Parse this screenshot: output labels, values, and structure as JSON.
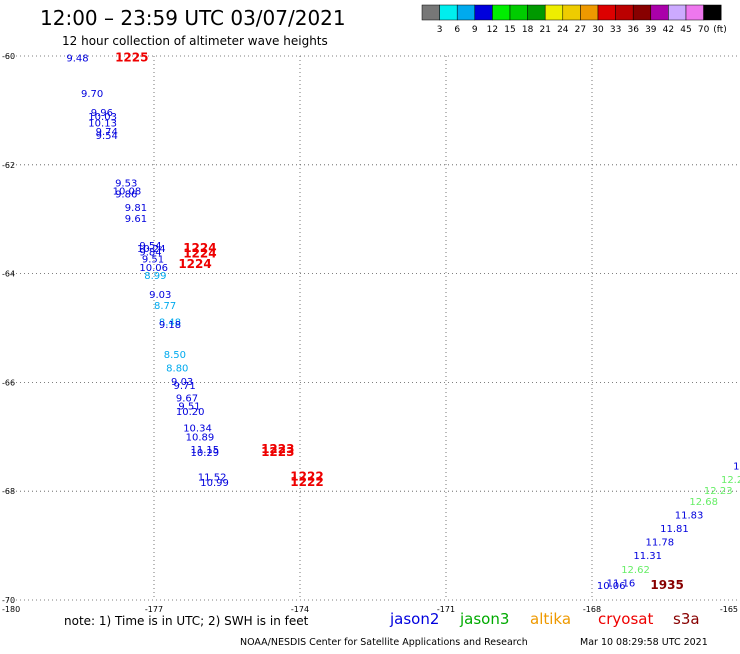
{
  "header": {
    "title": "12:00 – 23:59 UTC 03/07/2021",
    "subtitle": "12 hour collection of altimeter wave heights"
  },
  "colorbar": {
    "unit": "(ft)",
    "labels": [
      "3",
      "6",
      "9",
      "12",
      "15",
      "18",
      "21",
      "24",
      "27",
      "30",
      "33",
      "36",
      "39",
      "42",
      "45",
      "70"
    ],
    "colors": [
      "#777777",
      "#00eeee",
      "#00aaee",
      "#0000dd",
      "#00ee00",
      "#00cc00",
      "#009900",
      "#eeee00",
      "#eecc00",
      "#ee9900",
      "#dd0000",
      "#bb0000",
      "#880000",
      "#aa00aa",
      "#ccaaff",
      "#ee77ee",
      "#000000"
    ]
  },
  "map": {
    "lon_range": [
      -180,
      -165
    ],
    "lat_range": [
      -70,
      -60
    ],
    "lat_ticks": [
      "-60",
      "-62",
      "-64",
      "-66",
      "-68",
      "-70"
    ],
    "lon_ticks": [
      "-180",
      "-177",
      "-174",
      "-171",
      "-168",
      "-165"
    ],
    "grid": "dotted"
  },
  "time_labels": [
    {
      "text": "1225",
      "lon": -177.8,
      "lat": -60.1,
      "color": "#ee0000"
    },
    {
      "text": "1224",
      "lon": -176.4,
      "lat": -63.6,
      "color": "#ee0000"
    },
    {
      "text": "1224",
      "lon": -176.4,
      "lat": -63.7,
      "color": "#ee0000"
    },
    {
      "text": "1224",
      "lon": -176.5,
      "lat": -63.9,
      "color": "#ee0000"
    },
    {
      "text": "1223",
      "lon": -174.8,
      "lat": -67.3,
      "color": "#ee0000"
    },
    {
      "text": "1223",
      "lon": -174.8,
      "lat": -67.35,
      "color": "#ee0000"
    },
    {
      "text": "1222",
      "lon": -174.2,
      "lat": -67.8,
      "color": "#ee0000"
    },
    {
      "text": "1222",
      "lon": -174.2,
      "lat": -67.9,
      "color": "#ee0000"
    },
    {
      "text": "1935",
      "lon": -166.8,
      "lat": -69.8,
      "color": "#880000"
    }
  ],
  "wave_heights": [
    {
      "text": "9.48",
      "lon": -178.8,
      "lat": -60.1,
      "color": "#0000dd"
    },
    {
      "text": "9.70",
      "lon": -178.5,
      "lat": -60.75,
      "color": "#0000dd"
    },
    {
      "text": "9.96",
      "lon": -178.3,
      "lat": -61.1,
      "color": "#0000dd"
    },
    {
      "text": "10.03",
      "lon": -178.35,
      "lat": -61.18,
      "color": "#0000dd"
    },
    {
      "text": "10.13",
      "lon": -178.35,
      "lat": -61.3,
      "color": "#0000dd"
    },
    {
      "text": "9.74",
      "lon": -178.2,
      "lat": -61.45,
      "color": "#0000dd"
    },
    {
      "text": "9.54",
      "lon": -178.2,
      "lat": -61.53,
      "color": "#0000dd"
    },
    {
      "text": "9.53",
      "lon": -177.8,
      "lat": -62.4,
      "color": "#0000dd"
    },
    {
      "text": "10.08",
      "lon": -177.85,
      "lat": -62.55,
      "color": "#0000dd"
    },
    {
      "text": "9.86",
      "lon": -177.8,
      "lat": -62.6,
      "color": "#0000dd"
    },
    {
      "text": "9.81",
      "lon": -177.6,
      "lat": -62.85,
      "color": "#0000dd"
    },
    {
      "text": "9.61",
      "lon": -177.6,
      "lat": -63.05,
      "color": "#0000dd"
    },
    {
      "text": "9.54",
      "lon": -177.3,
      "lat": -63.55,
      "color": "#0000dd"
    },
    {
      "text": "10.24",
      "lon": -177.35,
      "lat": -63.6,
      "color": "#0000dd"
    },
    {
      "text": "9.84",
      "lon": -177.3,
      "lat": -63.67,
      "color": "#0000dd"
    },
    {
      "text": "9.51",
      "lon": -177.25,
      "lat": -63.8,
      "color": "#0000dd"
    },
    {
      "text": "10.06",
      "lon": -177.3,
      "lat": -63.95,
      "color": "#0000dd"
    },
    {
      "text": "8.99",
      "lon": -177.2,
      "lat": -64.1,
      "color": "#00aaee"
    },
    {
      "text": "9.03",
      "lon": -177.1,
      "lat": -64.45,
      "color": "#0000dd"
    },
    {
      "text": "8.77",
      "lon": -177.0,
      "lat": -64.65,
      "color": "#00aaee"
    },
    {
      "text": "8.48",
      "lon": -176.9,
      "lat": -64.95,
      "color": "#00aaee"
    },
    {
      "text": "9.18",
      "lon": -176.9,
      "lat": -65.0,
      "color": "#0000dd"
    },
    {
      "text": "8.50",
      "lon": -176.8,
      "lat": -65.55,
      "color": "#00aaee"
    },
    {
      "text": "8.80",
      "lon": -176.75,
      "lat": -65.8,
      "color": "#00aaee"
    },
    {
      "text": "9.03",
      "lon": -176.65,
      "lat": -66.05,
      "color": "#0000dd"
    },
    {
      "text": "9.71",
      "lon": -176.6,
      "lat": -66.12,
      "color": "#0000dd"
    },
    {
      "text": "9.67",
      "lon": -176.55,
      "lat": -66.35,
      "color": "#0000dd"
    },
    {
      "text": "9.51",
      "lon": -176.5,
      "lat": -66.5,
      "color": "#0000dd"
    },
    {
      "text": "10.20",
      "lon": -176.55,
      "lat": -66.6,
      "color": "#0000dd"
    },
    {
      "text": "10.34",
      "lon": -176.4,
      "lat": -66.9,
      "color": "#0000dd"
    },
    {
      "text": "10.89",
      "lon": -176.35,
      "lat": -67.07,
      "color": "#0000dd"
    },
    {
      "text": "11.15",
      "lon": -176.25,
      "lat": -67.3,
      "color": "#0000dd"
    },
    {
      "text": "10.29",
      "lon": -176.25,
      "lat": -67.35,
      "color": "#0000dd"
    },
    {
      "text": "11.52",
      "lon": -176.1,
      "lat": -67.8,
      "color": "#0000dd"
    },
    {
      "text": "10.99",
      "lon": -176.05,
      "lat": -67.9,
      "color": "#0000dd"
    },
    {
      "text": "1",
      "lon": -165.1,
      "lat": -67.6,
      "color": "#0000dd"
    },
    {
      "text": "12.2",
      "lon": -165.35,
      "lat": -67.85,
      "color": "#66ee66"
    },
    {
      "text": "12.23",
      "lon": -165.7,
      "lat": -68.05,
      "color": "#66ee66"
    },
    {
      "text": "12.68",
      "lon": -166.0,
      "lat": -68.25,
      "color": "#66ee66"
    },
    {
      "text": "11.83",
      "lon": -166.3,
      "lat": -68.5,
      "color": "#0000dd"
    },
    {
      "text": "11.81",
      "lon": -166.6,
      "lat": -68.75,
      "color": "#0000dd"
    },
    {
      "text": "11.78",
      "lon": -166.9,
      "lat": -69.0,
      "color": "#0000dd"
    },
    {
      "text": "11.31",
      "lon": -167.15,
      "lat": -69.25,
      "color": "#0000dd"
    },
    {
      "text": "12.62",
      "lon": -167.4,
      "lat": -69.5,
      "color": "#66ee66"
    },
    {
      "text": "11.16",
      "lon": -167.7,
      "lat": -69.75,
      "color": "#0000dd"
    },
    {
      "text": "10.06",
      "lon": -167.9,
      "lat": -69.8,
      "color": "#0000dd"
    }
  ],
  "footer": {
    "note": "note: 1) Time is in UTC; 2) SWH is in feet",
    "legend": [
      {
        "name": "jason2",
        "color": "#0000dd"
      },
      {
        "name": "jason3",
        "color": "#00aa00"
      },
      {
        "name": "altika",
        "color": "#ee9900"
      },
      {
        "name": "cryosat",
        "color": "#ee0000"
      },
      {
        "name": "s3a",
        "color": "#880000"
      }
    ],
    "credit": "NOAA/NESDIS Center for Satellite Applications and Research",
    "timestamp": "Mar 10 08:29:58 UTC 2021"
  }
}
